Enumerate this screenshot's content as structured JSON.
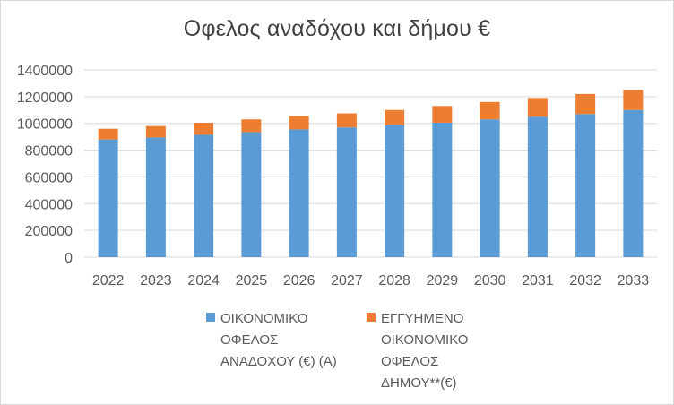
{
  "chart_data": {
    "type": "bar",
    "stacked": true,
    "title": "Οφελος αναδόχου και δήμου €",
    "categories": [
      "2022",
      "2023",
      "2024",
      "2025",
      "2026",
      "2027",
      "2028",
      "2029",
      "2030",
      "2031",
      "2032",
      "2033"
    ],
    "series": [
      {
        "name": "ΟΙΚΟΝΟΜΙΚΟ ΟΦΕΛΟΣ ΑΝΑΔΟΧΟΥ (€) (Α)",
        "color": "#5b9bd5",
        "values": [
          880000,
          895000,
          915000,
          935000,
          955000,
          970000,
          985000,
          1005000,
          1030000,
          1050000,
          1070000,
          1100000
        ]
      },
      {
        "name": "ΕΓΓΥΗΜΕΝΟ ΟΙΚΟΝΟΜΙΚΟ ΟΦΕΛΟΣ ΔΗΜΟΥ**(€)",
        "color": "#ed7d31",
        "values": [
          80000,
          85000,
          90000,
          95000,
          100000,
          105000,
          115000,
          125000,
          130000,
          140000,
          150000,
          150000
        ]
      }
    ],
    "ylim": [
      0,
      1400000
    ],
    "yticks": [
      "1400000",
      "1200000",
      "1000000",
      "800000",
      "600000",
      "400000",
      "200000",
      "0"
    ],
    "grid": true,
    "legend_position": "bottom"
  },
  "legend": {
    "items": [
      {
        "label": "ΟΙΚΟΝΟΜΙΚΟ\nΟΦΕΛΟΣ\nΑΝΑΔΟΧΟΥ (€) (Α)"
      },
      {
        "label": "ΕΓΓΥΗΜΕΝΟ\nΟΙΚΟΝΟΜΙΚΟ\nΟΦΕΛΟΣ\nΔΗΜΟΥ**(€)"
      }
    ]
  }
}
